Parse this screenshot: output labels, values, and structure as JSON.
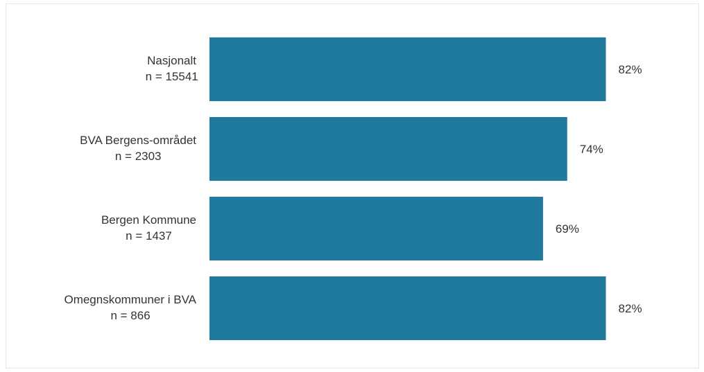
{
  "chart_data": {
    "type": "bar",
    "orientation": "horizontal",
    "title": "",
    "xlabel": "",
    "ylabel": "",
    "xlim": [
      0,
      100
    ],
    "grid": false,
    "legend": "none",
    "bar_color": "#1f7a9e",
    "categories": [
      {
        "name": "Nasjonalt",
        "n": "n = 15541"
      },
      {
        "name": "BVA Bergens-området",
        "n": "n = 2303"
      },
      {
        "name": "Bergen Kommune",
        "n": "n = 1437"
      },
      {
        "name": "Omegnskommuner i BVA",
        "n": "n = 866"
      }
    ],
    "values": [
      82,
      74,
      69,
      82
    ],
    "value_labels": [
      "82%",
      "74%",
      "69%",
      "82%"
    ]
  }
}
